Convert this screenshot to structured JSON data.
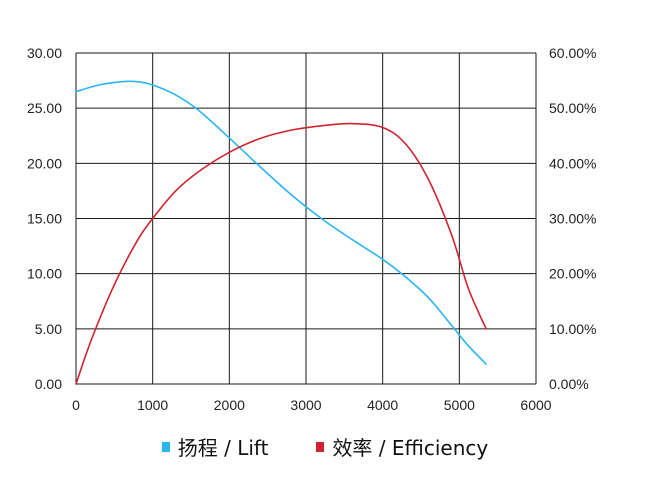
{
  "chart_data": {
    "type": "line",
    "x_ticks": [
      "0",
      "1000",
      "2000",
      "3000",
      "4000",
      "5000",
      "6000"
    ],
    "y_left_ticks": [
      "0.00",
      "5.00",
      "10.00",
      "15.00",
      "20.00",
      "25.00",
      "30.00"
    ],
    "y_right_ticks": [
      "0.00%",
      "10.00%",
      "20.00%",
      "30.00%",
      "40.00%",
      "50.00%",
      "60.00%"
    ],
    "xlim": [
      0,
      6000
    ],
    "ylim_left": [
      0,
      30
    ],
    "ylim_right": [
      0,
      60
    ],
    "grid": true,
    "legend_position": "bottom",
    "series": [
      {
        "name": "扬程 / Lift",
        "axis": "left",
        "color": "#29b6f0",
        "x": [
          0,
          300,
          600,
          800,
          1000,
          1300,
          1600,
          2000,
          2400,
          2800,
          3200,
          3600,
          4000,
          4300,
          4600,
          4900,
          5100,
          5350
        ],
        "y": [
          26.5,
          27.1,
          27.4,
          27.4,
          27.1,
          26.2,
          24.8,
          22.3,
          19.7,
          17.2,
          15.0,
          13.1,
          11.3,
          9.7,
          7.8,
          5.3,
          3.6,
          1.8
        ]
      },
      {
        "name": "效率 / Efficiency",
        "axis": "right",
        "color": "#d0232f",
        "x": [
          0,
          200,
          500,
          800,
          1000,
          1300,
          1600,
          2000,
          2400,
          2800,
          3200,
          3600,
          4000,
          4300,
          4600,
          4900,
          5100,
          5250,
          5350
        ],
        "y": [
          0,
          8,
          18,
          26,
          30,
          35,
          38.5,
          42,
          44.5,
          46,
          46.8,
          47.2,
          46.5,
          43.5,
          37,
          27,
          18,
          13,
          10
        ]
      }
    ]
  }
}
